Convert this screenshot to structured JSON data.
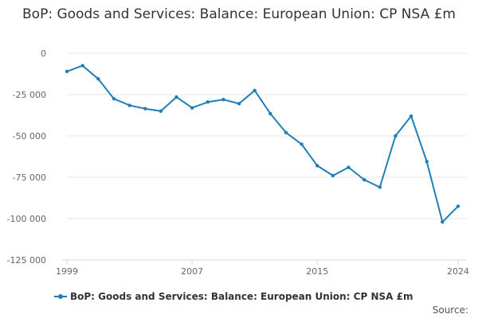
{
  "chart_data": {
    "type": "line",
    "title": "BoP: Goods and Services: Balance: European Union: CP NSA £m",
    "xlabel": "",
    "ylabel": "",
    "x": [
      1999,
      2000,
      2001,
      2002,
      2003,
      2004,
      2005,
      2006,
      2007,
      2008,
      2009,
      2010,
      2011,
      2012,
      2013,
      2014,
      2015,
      2016,
      2017,
      2018,
      2019,
      2020,
      2021,
      2022,
      2023,
      2024
    ],
    "series": [
      {
        "name": "BoP: Goods and Services: Balance: European Union: CP NSA £m",
        "color": "#1f7fb4",
        "values": [
          -11000,
          -7500,
          -15500,
          -27500,
          -31500,
          -33500,
          -35000,
          -26500,
          -33000,
          -29500,
          -28000,
          -30500,
          -22500,
          -36500,
          -48000,
          -55000,
          -68000,
          -74000,
          -69000,
          -76500,
          -81000,
          -50000,
          -38000,
          -65500,
          -102000,
          -92500
        ]
      }
    ],
    "xlim": [
      1999,
      2024
    ],
    "ylim": [
      -125000,
      0
    ],
    "xticks": [
      1999,
      2007,
      2015,
      2024
    ],
    "xtick_labels": [
      "1999",
      "2007",
      "2015",
      "2024"
    ],
    "yticks": [
      0,
      -25000,
      -50000,
      -75000,
      -100000,
      -125000
    ],
    "ytick_labels": [
      "0",
      "-25 000",
      "-50 000",
      "-75 000",
      "-100 000",
      "-125 000"
    ],
    "grid": true,
    "legend": "bottom-left"
  },
  "source_label": "Source:"
}
